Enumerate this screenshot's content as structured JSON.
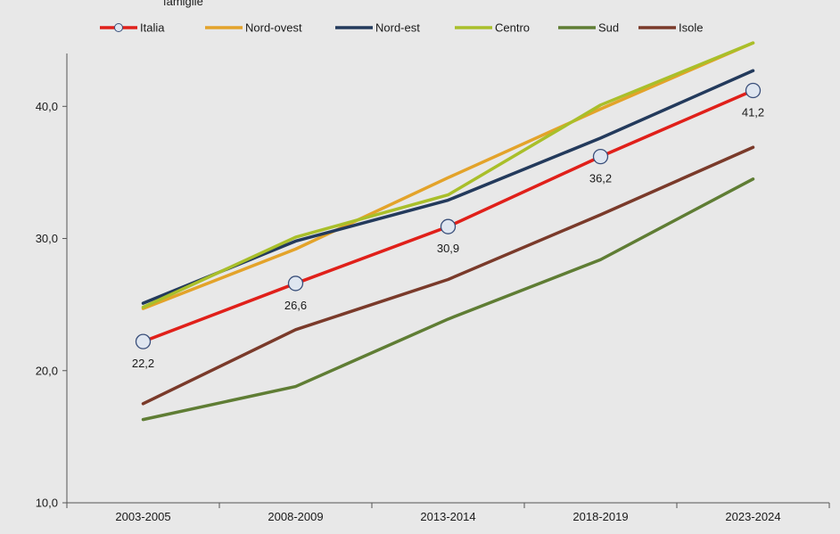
{
  "caption": "famiglie",
  "chart_data": {
    "type": "line",
    "categories": [
      "2003-2005",
      "2008-2009",
      "2013-2014",
      "2018-2019",
      "2023-2024"
    ],
    "ylim": [
      10,
      44
    ],
    "y_ticks": [
      10.0,
      20.0,
      30.0,
      40.0
    ],
    "y_tick_labels": [
      "10,0",
      "20,0",
      "30,0",
      "40,0"
    ],
    "grid": false,
    "legend_position": "top",
    "series": [
      {
        "name": "Italia",
        "color": "#e0201a",
        "marker": "circle",
        "values": [
          22.2,
          26.6,
          30.9,
          36.2,
          41.2
        ],
        "labels": [
          "22,2",
          "26,6",
          "30,9",
          "36,2",
          "41,2"
        ]
      },
      {
        "name": "Nord-ovest",
        "color": "#e3a32a",
        "values": [
          24.7,
          29.2,
          34.6,
          39.8,
          44.8
        ]
      },
      {
        "name": "Nord-est",
        "color": "#233a5c",
        "values": [
          25.1,
          29.8,
          32.9,
          37.6,
          42.7
        ]
      },
      {
        "name": "Centro",
        "color": "#a9bf2a",
        "values": [
          24.8,
          30.1,
          33.3,
          40.1,
          44.8
        ]
      },
      {
        "name": "Sud",
        "color": "#5f7d34",
        "values": [
          16.3,
          18.8,
          23.9,
          28.4,
          34.5
        ]
      },
      {
        "name": "Isole",
        "color": "#7a3a2a",
        "values": [
          17.5,
          23.1,
          26.9,
          31.8,
          36.9
        ]
      }
    ]
  }
}
